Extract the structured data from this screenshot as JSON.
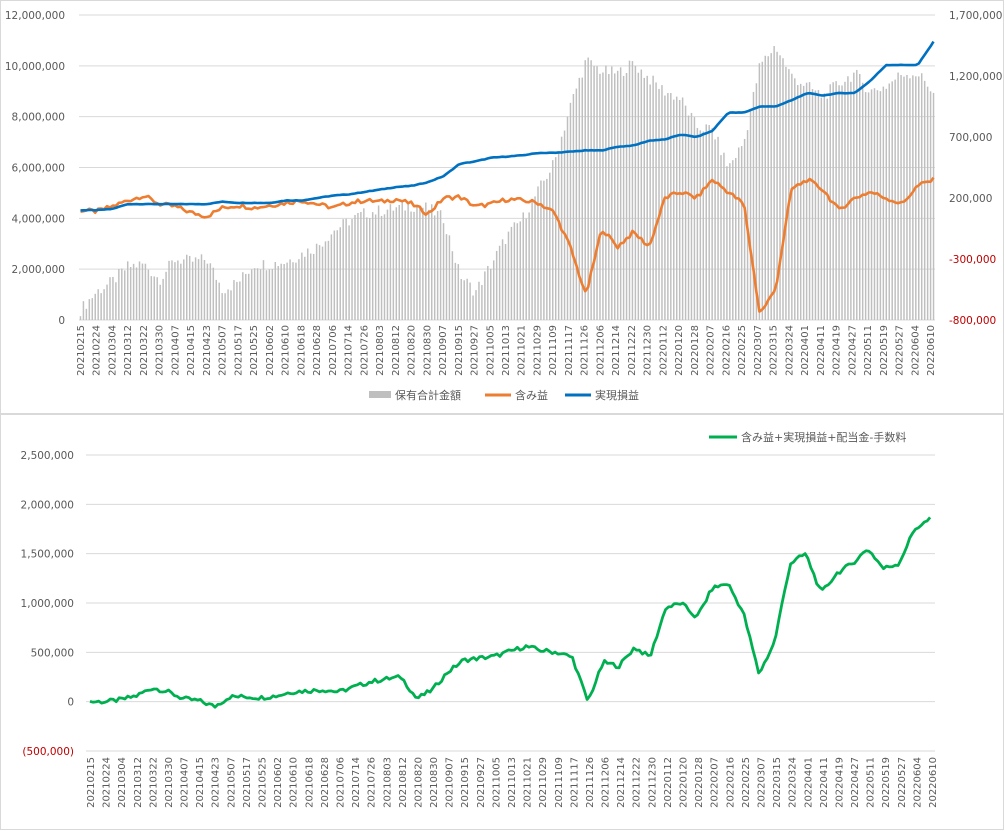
{
  "charts": {
    "top": {
      "legend": {
        "holding_label": "保有合計金額",
        "unrealized_label": "含み益",
        "realized_label": "実現損益"
      }
    },
    "bottom": {
      "legend": {
        "total_label": "含み益+実現損益+配当金-手数料"
      }
    }
  },
  "colors": {
    "holding": "#bfbfbf",
    "unrealized": "#ed7d31",
    "realized": "#0070c0",
    "total": "#00b050",
    "negative_tick": "#c00000",
    "grid": "#d9d9d9",
    "tick_text": "#595959"
  },
  "chart_data": [
    {
      "type": "combo",
      "x_categories": [
        "20210215",
        "20210224",
        "20210304",
        "20210312",
        "20210322",
        "20210330",
        "20210407",
        "20210415",
        "20210423",
        "20210507",
        "20210517",
        "20210525",
        "20210602",
        "20210610",
        "20210618",
        "20210628",
        "20210706",
        "20210714",
        "20210726",
        "20210803",
        "20210812",
        "20210820",
        "20210830",
        "20210907",
        "20210915",
        "20210927",
        "20211005",
        "20211013",
        "20211021",
        "20211029",
        "20211109",
        "20211117",
        "20211126",
        "20211206",
        "20211214",
        "20211222",
        "20211230",
        "20220112",
        "20220120",
        "20220128",
        "20220207",
        "20220216",
        "20220225",
        "20220307",
        "20220315",
        "20220324",
        "20220401",
        "20220411",
        "20220419",
        "20220427",
        "20220511",
        "20220519",
        "20220527",
        "20220604",
        "20220610"
      ],
      "y_left": {
        "ticks": [
          "0",
          "2,000,000",
          "4,000,000",
          "6,000,000",
          "8,000,000",
          "10,000,000",
          "12,000,000"
        ],
        "min": 0,
        "max": 12000000
      },
      "y_right": {
        "ticks": [
          "-800,000",
          "-300,000",
          "200,000",
          "700,000",
          "1,200,000",
          "1,700,000"
        ],
        "min": -800000,
        "max": 1700000
      },
      "grid": true,
      "legend_position": "bottom",
      "series": [
        {
          "name": "保有合計金額",
          "type": "bar",
          "axis": "left",
          "values": [
            400000,
            1100000,
            1500000,
            2100000,
            2200000,
            1600000,
            2400000,
            2300000,
            2400000,
            1200000,
            1500000,
            2200000,
            2200000,
            2300000,
            2600000,
            2900000,
            3500000,
            3900000,
            4200000,
            4300000,
            4400000,
            4500000,
            4400000,
            4000000,
            1800000,
            1100000,
            2200000,
            3300000,
            4000000,
            5100000,
            6200000,
            8400000,
            10200000,
            9800000,
            9700000,
            10100000,
            9500000,
            9000000,
            8700000,
            7600000,
            7500000,
            6000000,
            7000000,
            10000000,
            10800000,
            9600000,
            9200000,
            8800000,
            9300000,
            9700000,
            9000000,
            9200000,
            9700000,
            9700000,
            9000000
          ]
        },
        {
          "name": "含み益",
          "type": "line",
          "axis": "right",
          "values": [
            100000,
            90000,
            130000,
            180000,
            220000,
            150000,
            130000,
            80000,
            50000,
            120000,
            140000,
            120000,
            140000,
            160000,
            180000,
            150000,
            120000,
            160000,
            180000,
            170000,
            190000,
            150000,
            70000,
            200000,
            210000,
            130000,
            150000,
            190000,
            180000,
            160000,
            80000,
            -200000,
            -600000,
            -50000,
            -200000,
            -80000,
            -200000,
            200000,
            250000,
            200000,
            350000,
            250000,
            150000,
            -750000,
            -550000,
            270000,
            350000,
            270000,
            100000,
            200000,
            250000,
            200000,
            150000,
            300000,
            350000
          ]
        },
        {
          "name": "実現損益",
          "type": "line",
          "axis": "right",
          "values": [
            100000,
            100000,
            110000,
            150000,
            150000,
            150000,
            150000,
            150000,
            150000,
            170000,
            160000,
            160000,
            160000,
            180000,
            180000,
            200000,
            220000,
            230000,
            250000,
            270000,
            290000,
            300000,
            330000,
            380000,
            480000,
            500000,
            530000,
            540000,
            550000,
            570000,
            570000,
            580000,
            590000,
            590000,
            620000,
            630000,
            670000,
            680000,
            720000,
            700000,
            750000,
            900000,
            900000,
            950000,
            950000,
            1000000,
            1060000,
            1040000,
            1060000,
            1060000,
            1160000,
            1290000,
            1290000,
            1290000,
            1480000
          ]
        }
      ]
    },
    {
      "type": "line",
      "x_categories": [
        "20210215",
        "20210224",
        "20210304",
        "20210312",
        "20210322",
        "20210330",
        "20210407",
        "20210415",
        "20210423",
        "20210507",
        "20210517",
        "20210525",
        "20210602",
        "20210610",
        "20210618",
        "20210628",
        "20210706",
        "20210714",
        "20210726",
        "20210803",
        "20210812",
        "20210820",
        "20210830",
        "20210907",
        "20210915",
        "20210927",
        "20211005",
        "20211013",
        "20211021",
        "20211029",
        "20211109",
        "20211117",
        "20211126",
        "20211206",
        "20211214",
        "20211222",
        "20211230",
        "20220112",
        "20220120",
        "20220128",
        "20220207",
        "20220216",
        "20220225",
        "20220307",
        "20220315",
        "20220324",
        "20220401",
        "20220411",
        "20220419",
        "20220427",
        "20220511",
        "20220519",
        "20220527",
        "20220604",
        "20220610"
      ],
      "y": {
        "ticks": [
          "(500,000)",
          "0",
          "500,000",
          "1,000,000",
          "1,500,000",
          "2,000,000",
          "2,500,000"
        ],
        "min": -500000,
        "max": 2500000
      },
      "grid": true,
      "legend_position": "top-right",
      "series": [
        {
          "name": "含み益+実現損益+配当金-手数料",
          "values": [
            0,
            0,
            20000,
            60000,
            140000,
            100000,
            30000,
            10000,
            -50000,
            50000,
            50000,
            40000,
            60000,
            100000,
            110000,
            120000,
            100000,
            150000,
            200000,
            230000,
            250000,
            30000,
            120000,
            300000,
            420000,
            440000,
            460000,
            510000,
            560000,
            520000,
            500000,
            450000,
            0,
            400000,
            360000,
            550000,
            450000,
            950000,
            1000000,
            850000,
            1150000,
            1200000,
            900000,
            280000,
            600000,
            1400000,
            1500000,
            1100000,
            1300000,
            1400000,
            1550000,
            1350000,
            1400000,
            1750000,
            1850000
          ]
        }
      ]
    }
  ]
}
